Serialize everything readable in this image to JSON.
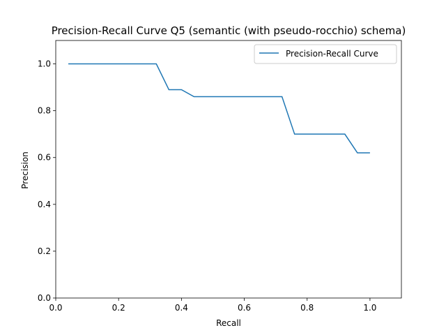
{
  "chart_data": {
    "type": "line",
    "title": "Precision-Recall Curve Q5 (semantic (with pseudo-rocchio) schema)",
    "xlabel": "Recall",
    "ylabel": "Precision",
    "xlim": [
      0.0,
      1.1
    ],
    "ylim": [
      0.0,
      1.1
    ],
    "x_ticks": [
      0.0,
      0.2,
      0.4,
      0.6,
      0.8,
      1.0
    ],
    "y_ticks": [
      0.0,
      0.2,
      0.4,
      0.6,
      0.8,
      1.0
    ],
    "x_tick_labels": [
      "0.0",
      "0.2",
      "0.4",
      "0.6",
      "0.8",
      "1.0"
    ],
    "y_tick_labels": [
      "0.0",
      "0.2",
      "0.4",
      "0.6",
      "0.8",
      "1.0"
    ],
    "grid": false,
    "legend_position": "top-right",
    "series": [
      {
        "name": "Precision-Recall Curve",
        "color": "#1f77b4",
        "x": [
          0.04,
          0.08,
          0.12,
          0.16,
          0.2,
          0.24,
          0.28,
          0.32,
          0.36,
          0.4,
          0.44,
          0.48,
          0.52,
          0.56,
          0.6,
          0.64,
          0.68,
          0.72,
          0.76,
          0.8,
          0.84,
          0.88,
          0.92,
          0.96,
          1.0
        ],
        "y": [
          1.0,
          1.0,
          1.0,
          1.0,
          1.0,
          1.0,
          1.0,
          1.0,
          0.89,
          0.89,
          0.86,
          0.86,
          0.86,
          0.86,
          0.86,
          0.86,
          0.86,
          0.86,
          0.7,
          0.7,
          0.7,
          0.7,
          0.7,
          0.62,
          0.62
        ]
      }
    ]
  }
}
